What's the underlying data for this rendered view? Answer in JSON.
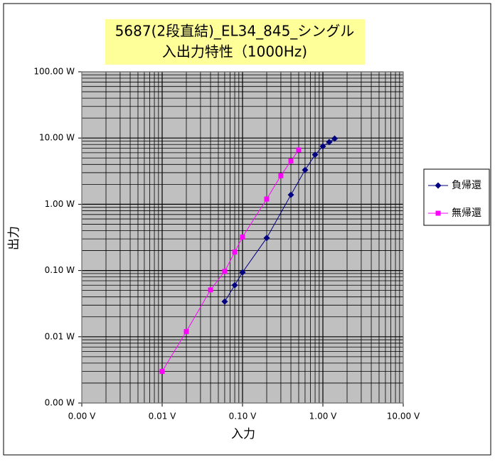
{
  "chart_data": {
    "type": "line",
    "title": [
      "5687(2段直結)_EL34_845_シングル",
      "入出力特性（1000Hz)"
    ],
    "x_label": "入力",
    "y_label": "出力",
    "x_scale": "log",
    "y_scale": "log",
    "grid": true,
    "minor_grid": true,
    "legend": "right",
    "xlim": [
      0.001,
      10
    ],
    "ylim": [
      0.001,
      100
    ],
    "xticks": [
      {
        "value": 0.001,
        "label": "0.00 V"
      },
      {
        "value": 0.01,
        "label": "0.01 V"
      },
      {
        "value": 0.1,
        "label": "0.10 V"
      },
      {
        "value": 1,
        "label": "1.00 V"
      },
      {
        "value": 10,
        "label": "10.00 V"
      }
    ],
    "yticks": [
      {
        "value": 0.001,
        "label": "0.00 W"
      },
      {
        "value": 0.01,
        "label": "0.01 W"
      },
      {
        "value": 0.1,
        "label": "0.10 W"
      },
      {
        "value": 1,
        "label": "1.00 W"
      },
      {
        "value": 10,
        "label": "10.00 W"
      },
      {
        "value": 100,
        "label": "100.00 W"
      }
    ],
    "series": [
      {
        "name": "負帰還",
        "color": "#000080",
        "marker": "diamond",
        "x": [
          0.06,
          0.08,
          0.1,
          0.2,
          0.4,
          0.6,
          0.8,
          1.0,
          1.2,
          1.4
        ],
        "values": [
          0.034,
          0.06,
          0.094,
          0.31,
          1.39,
          3.3,
          5.6,
          7.5,
          8.7,
          9.8
        ]
      },
      {
        "name": "無帰還",
        "color": "#ff00ff",
        "marker": "square",
        "x": [
          0.01,
          0.02,
          0.04,
          0.06,
          0.08,
          0.1,
          0.2,
          0.3,
          0.4,
          0.5
        ],
        "values": [
          0.003,
          0.012,
          0.051,
          0.097,
          0.19,
          0.32,
          1.2,
          2.7,
          4.5,
          6.6
        ]
      }
    ]
  }
}
